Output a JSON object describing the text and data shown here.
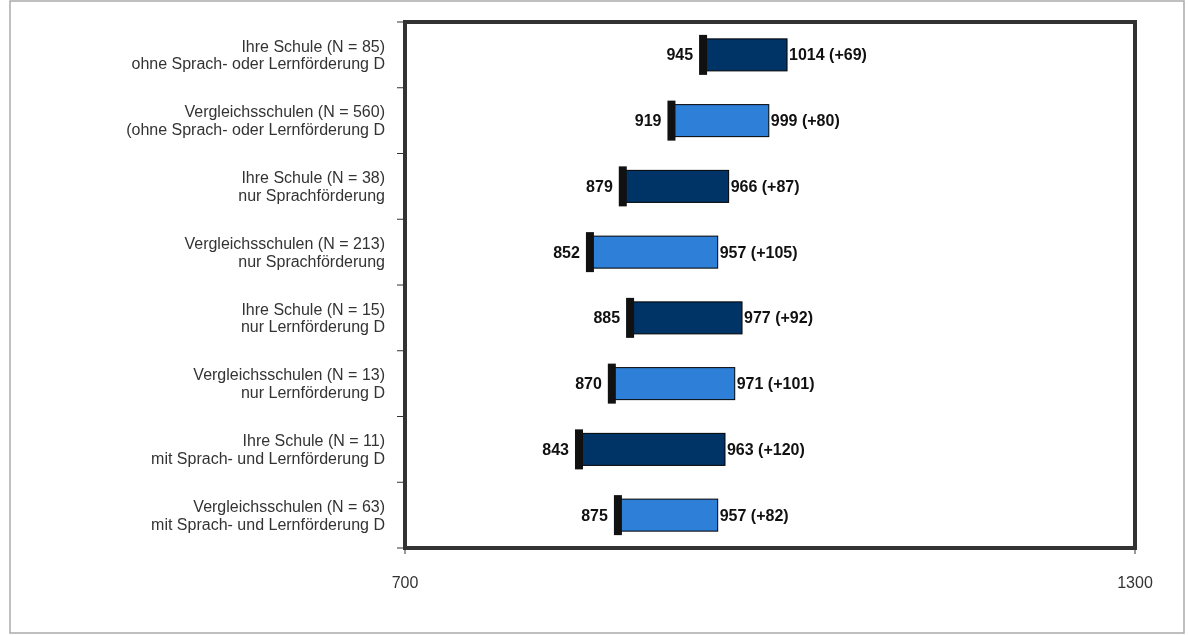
{
  "chart_data": {
    "type": "bar",
    "orientation": "horizontal",
    "categories": [
      "Ihre Schule (N = 85)\nohne Sprach- oder Lernförderung D",
      "Vergleichsschulen (N = 560)\n(ohne Sprach- oder Lernförderung D",
      "Ihre Schule (N = 38)\nnur Sprachförderung",
      "Vergleichsschulen (N = 213)\nnur Sprachförderung",
      "Ihre Schule (N = 15)\nnur Lernförderung D",
      "Vergleichsschulen (N = 13)\nnur Lernförderung D",
      "Ihre Schule (N = 11)\nmit Sprach- und Lernförderung D",
      "Vergleichsschulen (N = 63)\nmit Sprach- und Lernförderung D"
    ],
    "base": [
      945,
      919,
      879,
      852,
      885,
      870,
      843,
      875
    ],
    "values": [
      69,
      80,
      87,
      105,
      92,
      101,
      120,
      82
    ],
    "value_labels": [
      "1014 (+69)",
      "999 (+80)",
      "966 (+87)",
      "957 (+105)",
      "977 (+92)",
      "971 (+101)",
      "963 (+120)",
      "957 (+82)"
    ],
    "colors": [
      "#003366",
      "#2e7fd8",
      "#003366",
      "#2e7fd8",
      "#003366",
      "#2e7fd8",
      "#003366",
      "#2e7fd8"
    ],
    "annotations": [
      {
        "text": "945",
        "x": 945,
        "y": "Ihre Schule (N = 85)\nohne Sprach- oder Lernförderung D"
      },
      {
        "text": "919",
        "x": 919,
        "y": "Vergleichsschulen (N = 560)\n(ohne Sprach- oder Lernförderung D"
      },
      {
        "text": "879",
        "x": 879,
        "y": "Ihre Schule (N = 38)\nnur Sprachförderung"
      },
      {
        "text": "852",
        "x": 852,
        "y": "Vergleichsschulen (N = 213)\nnur Sprachförderung"
      },
      {
        "text": "885",
        "x": 885,
        "y": "Ihre Schule (N = 15)\nnur Lernförderung D"
      },
      {
        "text": "870",
        "x": 870,
        "y": "Vergleichsschulen (N = 13)\nnur Lernförderung D"
      },
      {
        "text": "843",
        "x": 843,
        "y": "Ihre Schule (N = 11)\nmit Sprach- und Lernförderung D"
      },
      {
        "text": "875",
        "x": 875,
        "y": "Vergleichsschulen (N = 63)\nmit Sprach- und Lernförderung D"
      }
    ],
    "xlim": [
      700,
      1300
    ],
    "xticks": [
      700,
      1300
    ]
  }
}
